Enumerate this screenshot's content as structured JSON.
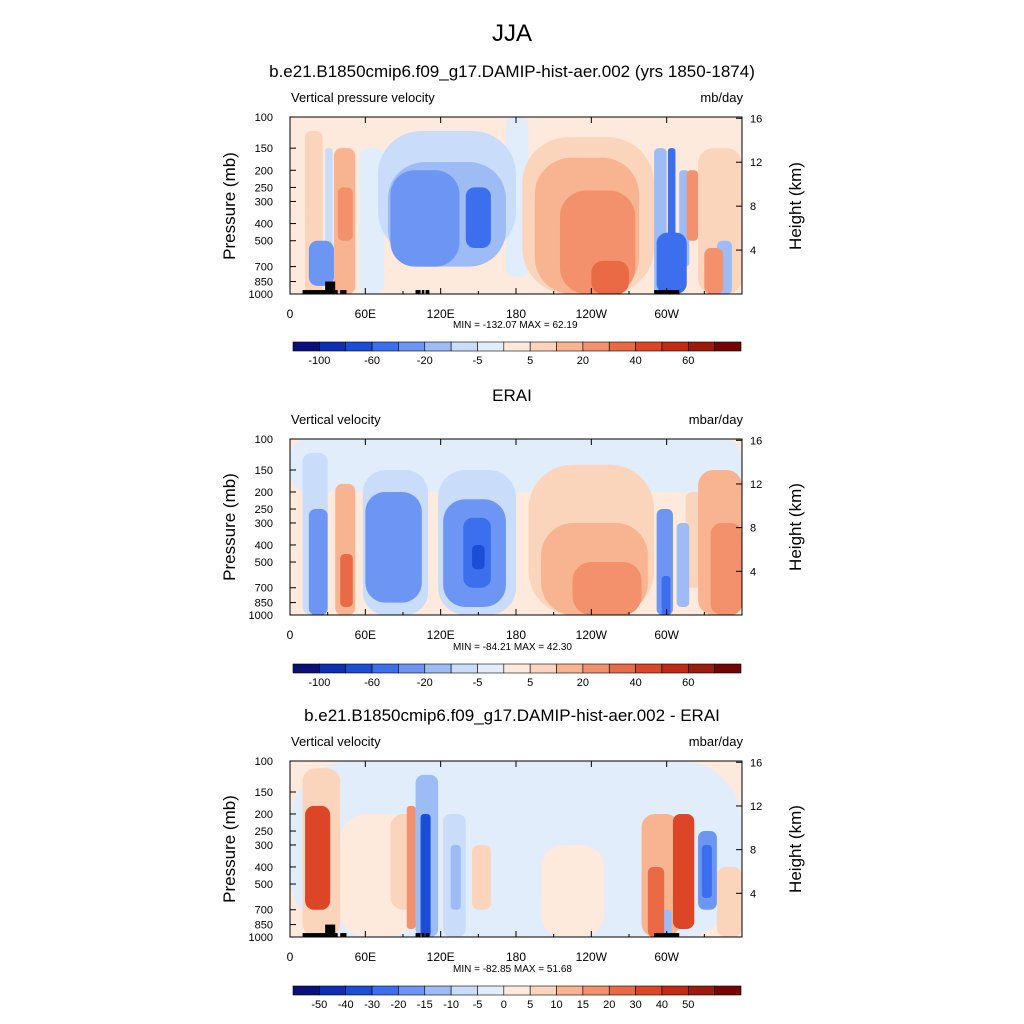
{
  "figure_title": "JJA",
  "chart_data": [
    {
      "type": "heatmap",
      "title": "b.e21.B1850cmip6.f09_g17.DAMIP-hist-aer.002 (yrs 1850-1874)",
      "left_label": "Vertical pressure velocity",
      "units": "mb/day",
      "xlabel": "",
      "ylabel": "Pressure (mb)",
      "ylabel_right": "Height (km)",
      "x_ticks": [
        "0",
        "60E",
        "120E",
        "180",
        "120W",
        "60W"
      ],
      "x_tick_lon": [
        0,
        60,
        120,
        180,
        240,
        300
      ],
      "xlim": [
        0,
        360
      ],
      "y_ticks": [
        "100",
        "150",
        "200",
        "250",
        "300",
        "400",
        "500",
        "700",
        "850",
        "1000"
      ],
      "y_tick_values": [
        100,
        150,
        200,
        250,
        300,
        400,
        500,
        700,
        850,
        1000
      ],
      "ylim": [
        1000,
        100
      ],
      "y_scale": "log",
      "right_ticks": [
        "4",
        "8",
        "12",
        "16"
      ],
      "right_tick_km": [
        4,
        8,
        12,
        16
      ],
      "min_max": "MIN = -132.07  MAX =  62.19",
      "colorbar_labels": [
        "-100",
        "-60",
        "-20",
        "-5",
        "5",
        "20",
        "40",
        "60"
      ],
      "colorbar_colors": [
        "#0a0f7a",
        "#0c2fb4",
        "#1a4ed6",
        "#3c6fee",
        "#6d96f4",
        "#9dbcf6",
        "#c9dcf9",
        "#e2edfb",
        "#fdeadd",
        "#fbd4bc",
        "#f8b491",
        "#f3916c",
        "#ea6a46",
        "#dc4626",
        "#c22a14",
        "#9c1b0c",
        "#730505"
      ],
      "terrain": [
        [
          10,
          38,
          "1000"
        ],
        [
          28,
          36,
          "850"
        ],
        [
          40,
          45,
          "1000"
        ],
        [
          100,
          104,
          "1000"
        ],
        [
          105,
          107,
          "1000"
        ],
        [
          108,
          111,
          "1000"
        ],
        [
          290,
          310,
          "1000"
        ]
      ],
      "features": [
        {
          "lon": [
            12,
            26
          ],
          "p": [
            120,
            1000
          ],
          "v": 8
        },
        {
          "lon": [
            28,
            34
          ],
          "p": [
            150,
            1000
          ],
          "v": -10
        },
        {
          "lon": [
            35,
            52
          ],
          "p": [
            150,
            1000
          ],
          "v": 10
        },
        {
          "lon": [
            15,
            35
          ],
          "p": [
            500,
            900
          ],
          "v": -25
        },
        {
          "lon": [
            38,
            50
          ],
          "p": [
            250,
            500
          ],
          "v": 25
        },
        {
          "lon": [
            55,
            75
          ],
          "p": [
            150,
            1000
          ],
          "v": -5
        },
        {
          "lon": [
            70,
            180
          ],
          "p": [
            120,
            600
          ],
          "v": -8
        },
        {
          "lon": [
            78,
            172
          ],
          "p": [
            180,
            700
          ],
          "v": -20
        },
        {
          "lon": [
            80,
            135
          ],
          "p": [
            200,
            700
          ],
          "v": -40
        },
        {
          "lon": [
            140,
            160
          ],
          "p": [
            250,
            550
          ],
          "v": -55
        },
        {
          "lon": [
            172,
            190
          ],
          "p": [
            100,
            800
          ],
          "v": -3
        },
        {
          "lon": [
            185,
            290
          ],
          "p": [
            130,
            1000
          ],
          "v": 8
        },
        {
          "lon": [
            195,
            278
          ],
          "p": [
            170,
            1000
          ],
          "v": 15
        },
        {
          "lon": [
            215,
            275
          ],
          "p": [
            260,
            1000
          ],
          "v": 25
        },
        {
          "lon": [
            240,
            270
          ],
          "p": [
            650,
            1000
          ],
          "v": 38
        },
        {
          "lon": [
            290,
            300
          ],
          "p": [
            150,
            1000
          ],
          "v": -15
        },
        {
          "lon": [
            292,
            316
          ],
          "p": [
            450,
            1000
          ],
          "v": -45
        },
        {
          "lon": [
            301,
            307
          ],
          "p": [
            150,
            950
          ],
          "v": -50
        },
        {
          "lon": [
            310,
            318
          ],
          "p": [
            200,
            700
          ],
          "v": -20
        },
        {
          "lon": [
            316,
            325
          ],
          "p": [
            200,
            500
          ],
          "v": 25
        },
        {
          "lon": [
            325,
            360
          ],
          "p": [
            150,
            1000
          ],
          "v": 8
        },
        {
          "lon": [
            330,
            345
          ],
          "p": [
            550,
            1000
          ],
          "v": 20
        },
        {
          "lon": [
            340,
            352
          ],
          "p": [
            500,
            1000
          ],
          "v": -15
        }
      ]
    },
    {
      "type": "heatmap",
      "title": "ERAI",
      "left_label": "Vertical velocity",
      "units": "mbar/day",
      "xlabel": "",
      "ylabel": "Pressure (mb)",
      "ylabel_right": "Height (km)",
      "x_ticks": [
        "0",
        "60E",
        "120E",
        "180",
        "120W",
        "60W"
      ],
      "x_tick_lon": [
        0,
        60,
        120,
        180,
        240,
        300
      ],
      "xlim": [
        0,
        360
      ],
      "y_ticks": [
        "100",
        "150",
        "200",
        "250",
        "300",
        "400",
        "500",
        "700",
        "850",
        "1000"
      ],
      "y_tick_values": [
        100,
        150,
        200,
        250,
        300,
        400,
        500,
        700,
        850,
        1000
      ],
      "ylim": [
        1000,
        100
      ],
      "y_scale": "log",
      "right_ticks": [
        "4",
        "8",
        "12",
        "16"
      ],
      "right_tick_km": [
        4,
        8,
        12,
        16
      ],
      "min_max": "MIN = -84.21  MAX =  42.30",
      "colorbar_labels": [
        "-100",
        "-60",
        "-20",
        "-5",
        "5",
        "20",
        "40",
        "60"
      ],
      "colorbar_colors": [
        "#0a0f7a",
        "#0c2fb4",
        "#1a4ed6",
        "#3c6fee",
        "#6d96f4",
        "#9dbcf6",
        "#c9dcf9",
        "#e2edfb",
        "#fdeadd",
        "#fbd4bc",
        "#f8b491",
        "#f3916c",
        "#ea6a46",
        "#dc4626",
        "#c22a14",
        "#9c1b0c",
        "#730505"
      ],
      "terrain": [],
      "features": [
        {
          "lon": [
            0,
            360
          ],
          "p": [
            100,
            200
          ],
          "v": -2
        },
        {
          "lon": [
            10,
            30
          ],
          "p": [
            120,
            1000
          ],
          "v": -8
        },
        {
          "lon": [
            15,
            30
          ],
          "p": [
            250,
            1000
          ],
          "v": -30
        },
        {
          "lon": [
            30,
            38
          ],
          "p": [
            200,
            1000
          ],
          "v": 3
        },
        {
          "lon": [
            36,
            52
          ],
          "p": [
            180,
            1000
          ],
          "v": 15
        },
        {
          "lon": [
            40,
            50
          ],
          "p": [
            450,
            900
          ],
          "v": 30
        },
        {
          "lon": [
            58,
            110
          ],
          "p": [
            150,
            1000
          ],
          "v": -8
        },
        {
          "lon": [
            60,
            105
          ],
          "p": [
            200,
            850
          ],
          "v": -25
        },
        {
          "lon": [
            80,
            100
          ],
          "p": [
            280,
            600
          ],
          "v": -40
        },
        {
          "lon": [
            108,
            118
          ],
          "p": [
            200,
            1000
          ],
          "v": 3
        },
        {
          "lon": [
            118,
            180
          ],
          "p": [
            150,
            1000
          ],
          "v": -10
        },
        {
          "lon": [
            122,
            172
          ],
          "p": [
            220,
            900
          ],
          "v": -25
        },
        {
          "lon": [
            138,
            160
          ],
          "p": [
            280,
            700
          ],
          "v": -45
        },
        {
          "lon": [
            145,
            155
          ],
          "p": [
            400,
            550
          ],
          "v": -70
        },
        {
          "lon": [
            190,
            290
          ],
          "p": [
            140,
            1000
          ],
          "v": 8
        },
        {
          "lon": [
            200,
            285
          ],
          "p": [
            300,
            1000
          ],
          "v": 15
        },
        {
          "lon": [
            225,
            280
          ],
          "p": [
            500,
            1000
          ],
          "v": 28
        },
        {
          "lon": [
            292,
            305
          ],
          "p": [
            250,
            1000
          ],
          "v": -25
        },
        {
          "lon": [
            296,
            303
          ],
          "p": [
            600,
            1000
          ],
          "v": -55
        },
        {
          "lon": [
            308,
            318
          ],
          "p": [
            300,
            900
          ],
          "v": -15
        },
        {
          "lon": [
            315,
            330
          ],
          "p": [
            200,
            700
          ],
          "v": 5
        },
        {
          "lon": [
            325,
            360
          ],
          "p": [
            150,
            1000
          ],
          "v": 15
        },
        {
          "lon": [
            335,
            360
          ],
          "p": [
            300,
            1000
          ],
          "v": 25
        }
      ]
    },
    {
      "type": "heatmap",
      "title": "b.e21.B1850cmip6.f09_g17.DAMIP-hist-aer.002 - ERAI",
      "left_label": "Vertical velocity",
      "units": "mbar/day",
      "xlabel": "",
      "ylabel": "Pressure (mb)",
      "ylabel_right": "Height (km)",
      "x_ticks": [
        "0",
        "60E",
        "120E",
        "180",
        "120W",
        "60W"
      ],
      "x_tick_lon": [
        0,
        60,
        120,
        180,
        240,
        300
      ],
      "xlim": [
        0,
        360
      ],
      "y_ticks": [
        "100",
        "150",
        "200",
        "250",
        "300",
        "400",
        "500",
        "700",
        "850",
        "1000"
      ],
      "y_tick_values": [
        100,
        150,
        200,
        250,
        300,
        400,
        500,
        700,
        850,
        1000
      ],
      "ylim": [
        1000,
        100
      ],
      "y_scale": "log",
      "right_ticks": [
        "4",
        "8",
        "12",
        "16"
      ],
      "right_tick_km": [
        4,
        8,
        12,
        16
      ],
      "min_max": "MIN = -82.85  MAX =  51.68",
      "colorbar_labels": [
        "-50",
        "-40",
        "-30",
        "-20",
        "-15",
        "-10",
        "-5",
        "0",
        "5",
        "10",
        "15",
        "20",
        "30",
        "40",
        "50"
      ],
      "colorbar_colors": [
        "#0a0f7a",
        "#0c2fb4",
        "#1a4ed6",
        "#3c6fee",
        "#6d96f4",
        "#9dbcf6",
        "#c9dcf9",
        "#e2edfb",
        "#fdeadd",
        "#fbd4bc",
        "#f8b491",
        "#f3916c",
        "#ea6a46",
        "#dc4626",
        "#c22a14",
        "#9c1b0c",
        "#730505"
      ],
      "terrain": [
        [
          10,
          38,
          "1000"
        ],
        [
          28,
          36,
          "850"
        ],
        [
          40,
          45,
          "1000"
        ],
        [
          100,
          104,
          "1000"
        ],
        [
          105,
          107,
          "1000"
        ],
        [
          108,
          111,
          "1000"
        ],
        [
          290,
          310,
          "1000"
        ]
      ],
      "features": [
        {
          "lon": [
            0,
            360
          ],
          "p": [
            100,
            1000
          ],
          "v": -2
        },
        {
          "lon": [
            10,
            40
          ],
          "p": [
            110,
            1000
          ],
          "v": 8
        },
        {
          "lon": [
            12,
            32
          ],
          "p": [
            180,
            700
          ],
          "v": 30
        },
        {
          "lon": [
            40,
            100
          ],
          "p": [
            200,
            1000
          ],
          "v": 4
        },
        {
          "lon": [
            80,
            110
          ],
          "p": [
            200,
            700
          ],
          "v": 8
        },
        {
          "lon": [
            93,
            100
          ],
          "p": [
            180,
            900
          ],
          "v": 15
        },
        {
          "lon": [
            100,
            118
          ],
          "p": [
            120,
            1000
          ],
          "v": -12
        },
        {
          "lon": [
            104,
            112
          ],
          "p": [
            200,
            1000
          ],
          "v": -40
        },
        {
          "lon": [
            122,
            140
          ],
          "p": [
            200,
            1000
          ],
          "v": -8
        },
        {
          "lon": [
            128,
            136
          ],
          "p": [
            300,
            700
          ],
          "v": -15
        },
        {
          "lon": [
            145,
            160
          ],
          "p": [
            300,
            700
          ],
          "v": 8
        },
        {
          "lon": [
            180,
            200
          ],
          "p": [
            150,
            700
          ],
          "v": -5
        },
        {
          "lon": [
            200,
            250
          ],
          "p": [
            300,
            1000
          ],
          "v": 4
        },
        {
          "lon": [
            280,
            310
          ],
          "p": [
            200,
            1000
          ],
          "v": 10
        },
        {
          "lon": [
            285,
            298
          ],
          "p": [
            400,
            1000
          ],
          "v": 25
        },
        {
          "lon": [
            305,
            322
          ],
          "p": [
            200,
            900
          ],
          "v": 30
        },
        {
          "lon": [
            296,
            304
          ],
          "p": [
            700,
            1000
          ],
          "v": -15
        },
        {
          "lon": [
            325,
            340
          ],
          "p": [
            250,
            700
          ],
          "v": -20
        },
        {
          "lon": [
            328,
            336
          ],
          "p": [
            300,
            600
          ],
          "v": -30
        },
        {
          "lon": [
            340,
            360
          ],
          "p": [
            400,
            1000
          ],
          "v": 5
        }
      ]
    }
  ]
}
